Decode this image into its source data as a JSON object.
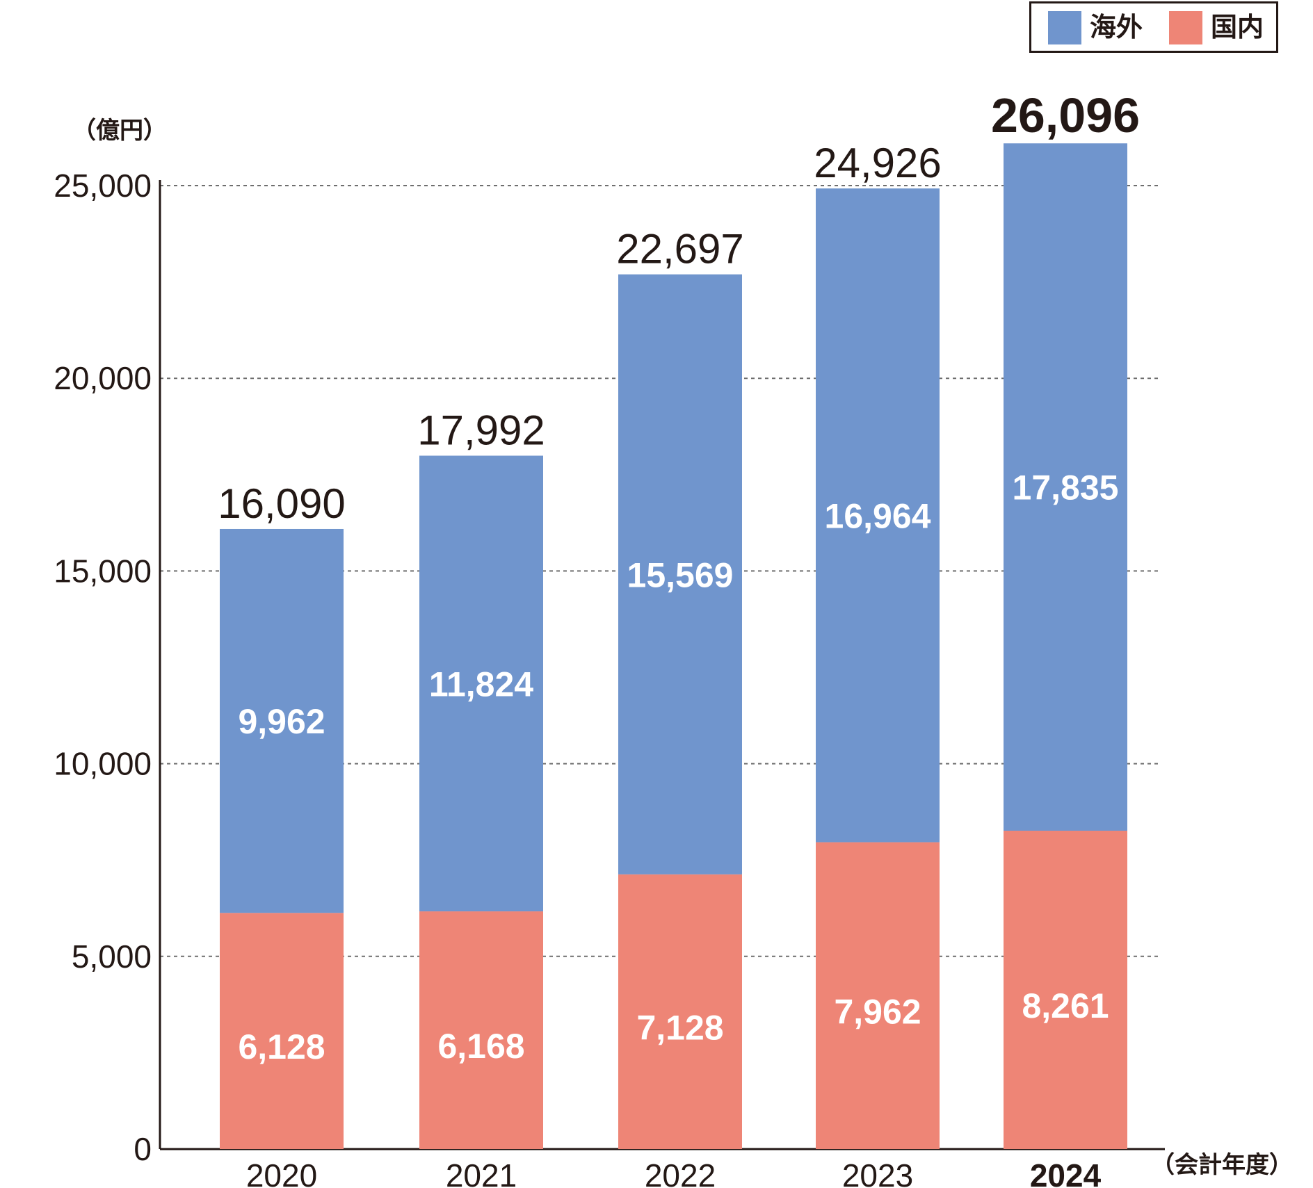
{
  "chart_data": {
    "type": "bar",
    "stacked": true,
    "categories": [
      "2020",
      "2021",
      "2022",
      "2023",
      "2024"
    ],
    "highlight_category": "2024",
    "series": [
      {
        "name": "国内",
        "color": "#ee8576",
        "values": [
          6128,
          6168,
          7128,
          7962,
          8261
        ],
        "labels": [
          "6,128",
          "6,168",
          "7,128",
          "7,962",
          "8,261"
        ]
      },
      {
        "name": "海外",
        "color": "#7095cd",
        "values": [
          9962,
          11824,
          15569,
          16964,
          17835
        ],
        "labels": [
          "9,962",
          "11,824",
          "15,569",
          "16,964",
          "17,835"
        ]
      }
    ],
    "totals": [
      16090,
      17992,
      22697,
      24926,
      26096
    ],
    "total_labels": [
      "16,090",
      "17,992",
      "22,697",
      "24,926",
      "26,096"
    ],
    "ylabel": "（億円）",
    "xlabel": "（会計年度）",
    "ylim": [
      0,
      25000
    ],
    "yticks": [
      0,
      5000,
      10000,
      15000,
      20000,
      25000
    ],
    "ytick_labels": [
      "0",
      "5,000",
      "10,000",
      "15,000",
      "20,000",
      "25,000"
    ],
    "grid": "dashed horizontal",
    "legend": {
      "placement": "top-right",
      "items": [
        {
          "label": "海外",
          "color": "#7095cd"
        },
        {
          "label": "国内",
          "color": "#ee8576"
        }
      ]
    }
  }
}
